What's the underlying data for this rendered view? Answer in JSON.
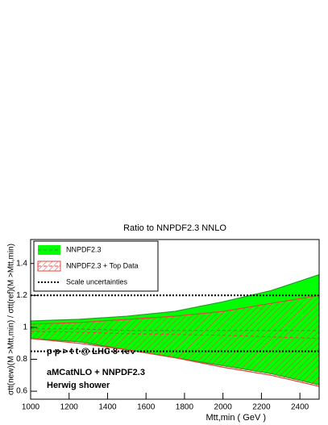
{
  "chart_data": {
    "type": "band",
    "title": "Ratio to NNPDF2.3 NNLO",
    "x_label": "Mtt,min ( GeV )",
    "y_label": "σtt(new)(M >Mtt,min) / σtt(ref)(M >Mtt,min)",
    "annotations": [
      "p p > t t  @ LHC 8 TeV",
      "aMCatNLO + NNPDF2.3",
      "Herwig shower"
    ],
    "x": [
      1000,
      1250,
      1500,
      1750,
      2000,
      2250,
      2500
    ],
    "series": [
      {
        "name": "NNPDF2.3",
        "color": "#00ff00",
        "values": [
          0.99,
          0.99,
          0.98,
          0.98,
          0.98,
          0.98,
          0.98
        ],
        "upper": [
          1.04,
          1.05,
          1.07,
          1.1,
          1.16,
          1.23,
          1.33
        ],
        "lower": [
          0.93,
          0.91,
          0.86,
          0.81,
          0.76,
          0.71,
          0.64
        ]
      },
      {
        "name": "NNPDF2.3 + Top Data",
        "color": "#e8413c",
        "values": [
          0.975,
          0.97,
          0.96,
          0.955,
          0.95,
          0.94,
          0.93
        ],
        "upper": [
          1.02,
          1.03,
          1.05,
          1.07,
          1.1,
          1.15,
          1.2
        ],
        "lower": [
          0.93,
          0.9,
          0.86,
          0.81,
          0.75,
          0.7,
          0.63
        ]
      },
      {
        "name": "Scale uncertainties",
        "color": "#000000",
        "upper": [
          1.2,
          1.2,
          1.2,
          1.2,
          1.2,
          1.2,
          1.2
        ],
        "lower": [
          0.85,
          0.85,
          0.85,
          0.85,
          0.85,
          0.85,
          0.85
        ]
      }
    ],
    "xlim": [
      1000,
      2500
    ],
    "xticks": [
      1000,
      1200,
      1400,
      1600,
      1800,
      2000,
      2200,
      2400
    ],
    "ylim": [
      0.55,
      1.55
    ],
    "yticks": [
      0.6,
      0.8,
      1,
      1.2,
      1.4
    ],
    "legend": "top-left"
  }
}
